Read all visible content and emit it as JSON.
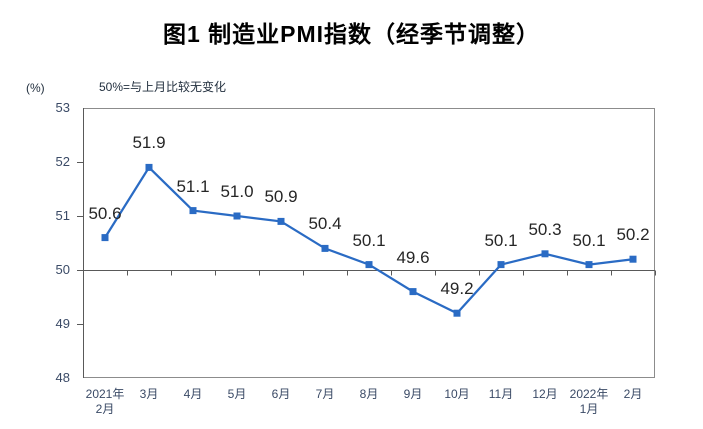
{
  "chart_data": {
    "type": "line",
    "title": "图1 制造业PMI指数（经季节调整）",
    "unit_label": "(%)",
    "annotation": "50%=与上月比较无变化",
    "categories": [
      [
        "2021年",
        "2月"
      ],
      [
        "3月"
      ],
      [
        "4月"
      ],
      [
        "5月"
      ],
      [
        "6月"
      ],
      [
        "7月"
      ],
      [
        "8月"
      ],
      [
        "9月"
      ],
      [
        "10月"
      ],
      [
        "11月"
      ],
      [
        "12月"
      ],
      [
        "2022年",
        "1月"
      ],
      [
        "2月"
      ]
    ],
    "series": [
      {
        "name": "制造业PMI指数",
        "values": [
          50.6,
          51.9,
          51.1,
          51.0,
          50.9,
          50.4,
          50.1,
          49.6,
          49.2,
          50.1,
          50.3,
          50.1,
          50.2
        ],
        "labels": [
          "50.6",
          "51.9",
          "51.1",
          "51.0",
          "50.9",
          "50.4",
          "50.1",
          "49.6",
          "49.2",
          "50.1",
          "50.3",
          "50.1",
          "50.2"
        ]
      }
    ],
    "ylim": [
      48,
      53
    ],
    "y_ticks": [
      "53",
      "52",
      "51",
      "50",
      "49",
      "48"
    ],
    "reference_line": 50,
    "legend": "none",
    "grid": "off",
    "colors": {
      "line": "#2a6bc4",
      "marker": "#2a6bc4",
      "plot_border": "#8c8c8c",
      "axis_line": "#595959",
      "axis_text": "#3a4a66",
      "data_label_text": "#262626",
      "title_text": "#000000"
    }
  }
}
